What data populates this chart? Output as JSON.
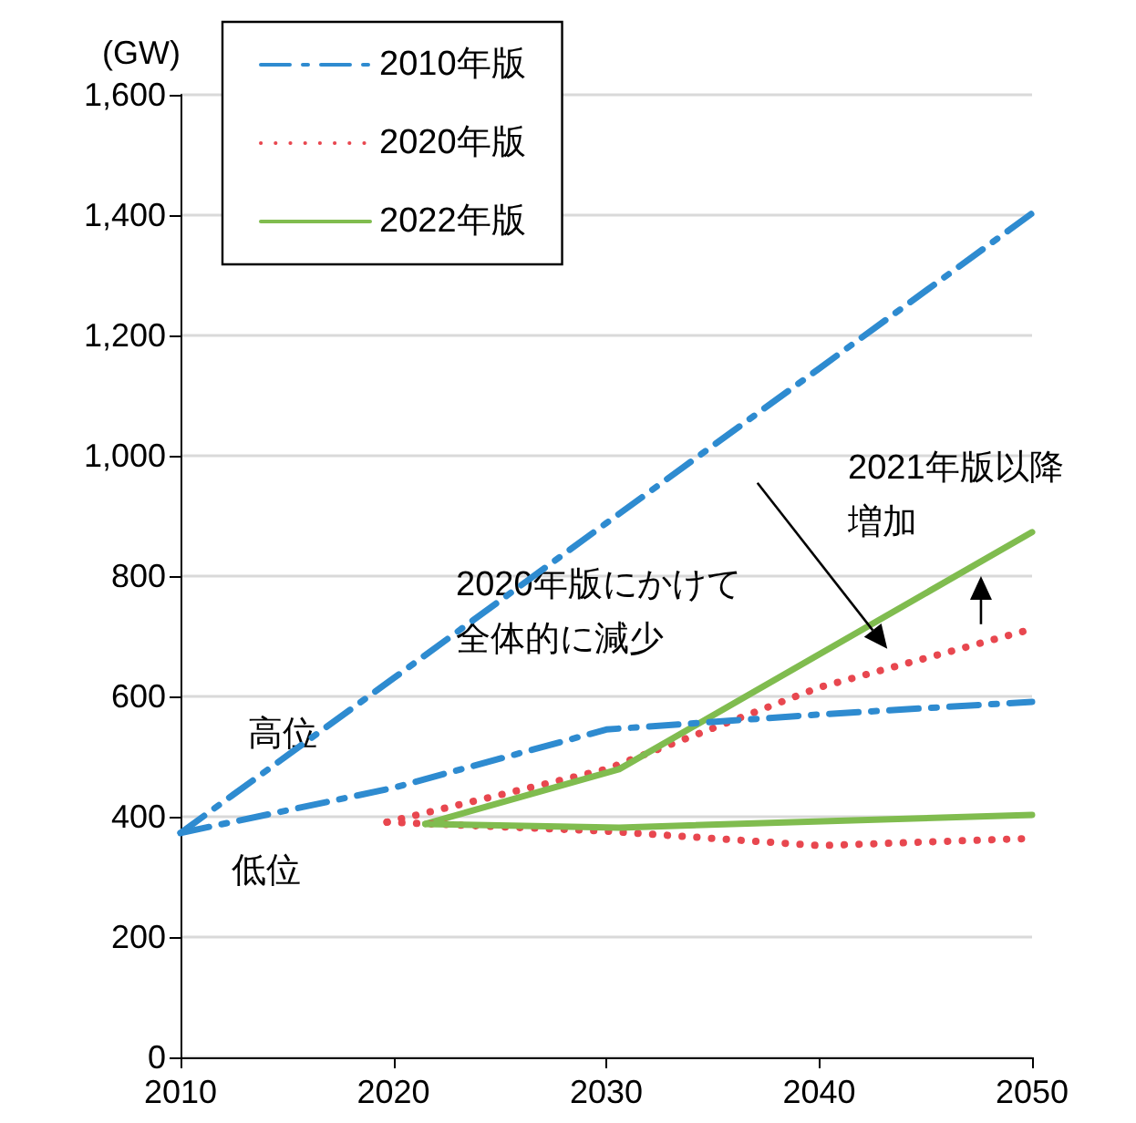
{
  "chart_data": {
    "type": "line",
    "ylabel": "(GW)",
    "xlim": [
      2010,
      2050
    ],
    "xticks": [
      2010,
      2020,
      2030,
      2040,
      2050
    ],
    "ylim": [
      0,
      1600
    ],
    "yticks": [
      0,
      {
        "value": 200,
        "label": "200"
      },
      {
        "value": 400,
        "label": "400"
      },
      {
        "value": 600,
        "label": "600"
      },
      {
        "value": 800,
        "label": "800"
      },
      {
        "value": 1000,
        "label": "1,000"
      },
      {
        "value": 1200,
        "label": "1,200"
      },
      {
        "value": 1400,
        "label": "1,400"
      },
      {
        "value": 1600,
        "label": "1,600"
      }
    ],
    "grid": "y",
    "legend": "top left",
    "marker": "none",
    "series": [
      {
        "name": "2010年版",
        "color": "#2e8bd0",
        "line_style": "dashed",
        "x": [
          2010,
          2020,
          2030,
          2040,
          2050
        ],
        "values": [
          373,
          630,
          888,
          1145,
          1403
        ]
      },
      {
        "name": "2020年版",
        "color": "#e8474f",
        "line_style": "dotted",
        "x": [
          2019.7,
          2030,
          2040,
          2050
        ],
        "values": [
          391,
          479,
          615,
          712
        ]
      },
      {
        "name": "2022年版",
        "color": "#80bc4f",
        "line_style": "solid",
        "x": [
          2021.5,
          2030.6,
          2050
        ],
        "values": [
          388,
          479,
          873
        ]
      },
      {
        "color": "#2e8bd0",
        "line_style": "dashed",
        "x": [
          2010,
          2020,
          2030,
          2040,
          2050
        ],
        "values": [
          373,
          448,
          545,
          570,
          591
        ]
      },
      {
        "color": "#e8474f",
        "line_style": "dotted",
        "x": [
          2019.7,
          2030,
          2040,
          2050
        ],
        "values": [
          391,
          376,
          352,
          364
        ]
      },
      {
        "color": "#80bc4f",
        "line_style": "solid",
        "x": [
          2021.5,
          2030.6,
          2050
        ],
        "values": [
          388,
          382,
          403
        ]
      }
    ],
    "annotations": [
      "高位",
      "低位",
      "2020年版にかけて全体的に減少",
      "2021年版以降増加"
    ]
  }
}
